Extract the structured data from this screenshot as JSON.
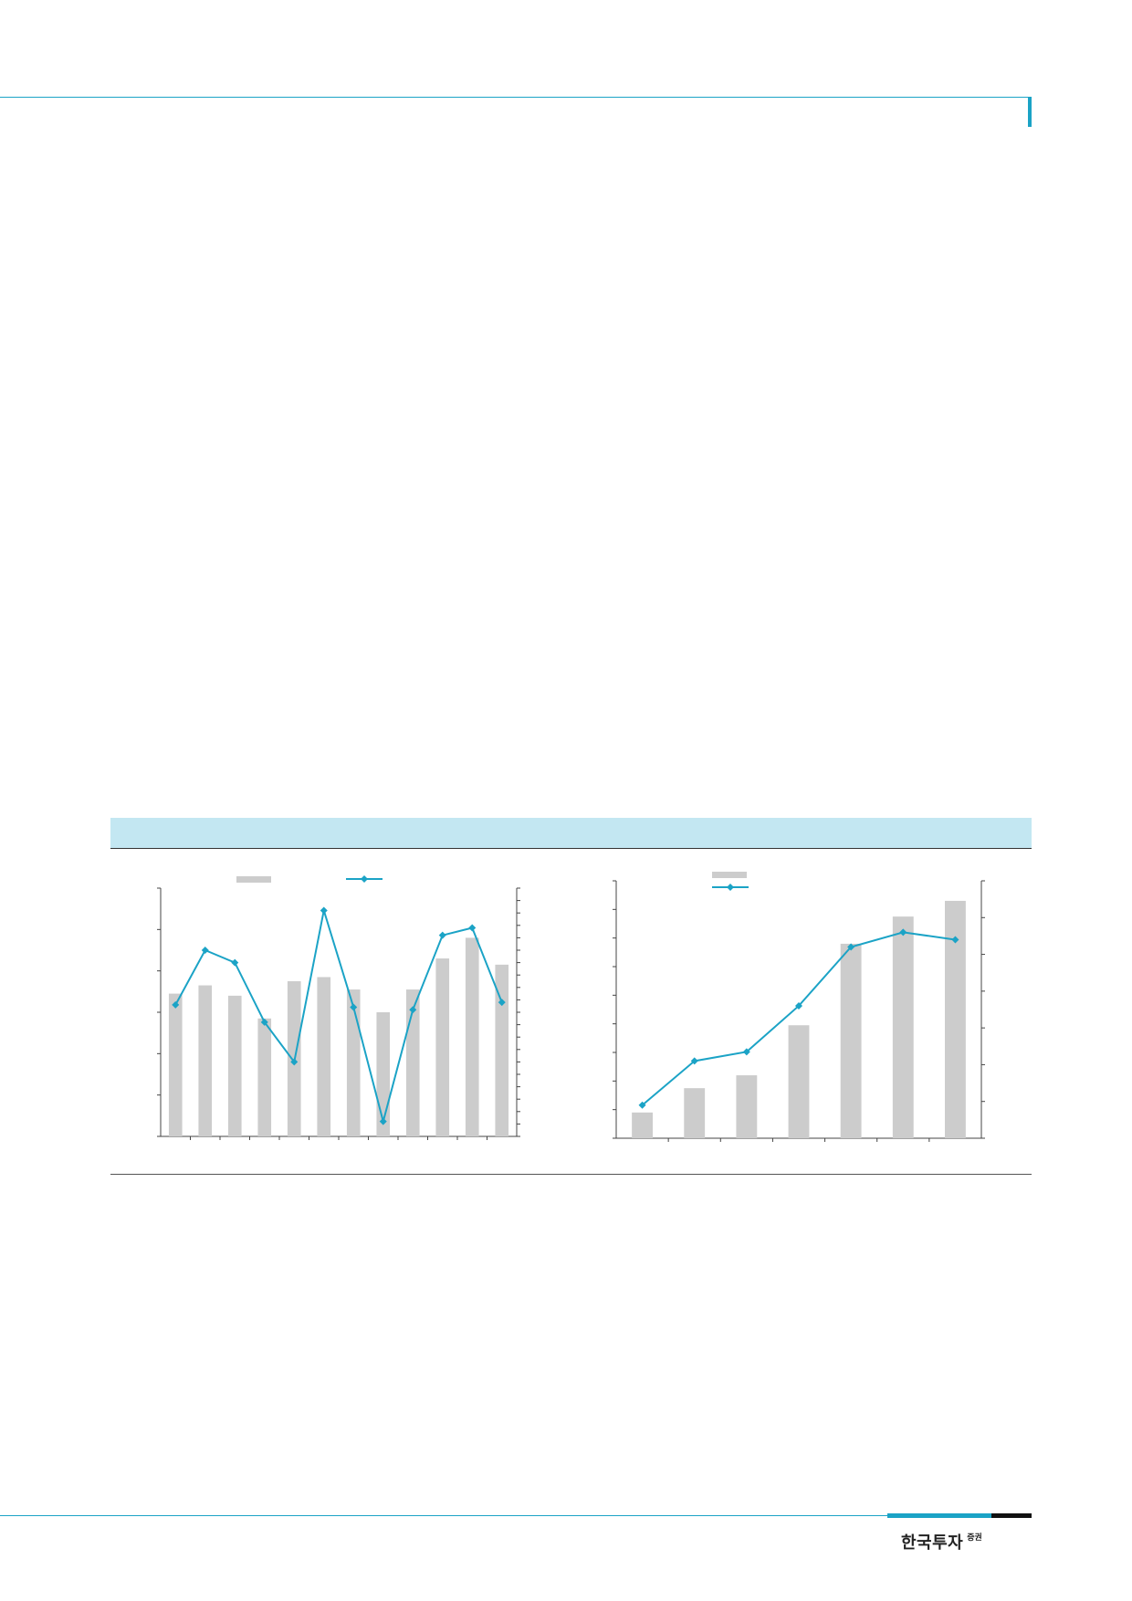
{
  "brand": {
    "main": "한국투자",
    "sub": "증권"
  },
  "colors": {
    "accent": "#1ba3c6",
    "band": "#c3e7f2",
    "bar": "#cccccc"
  },
  "chart_data": [
    {
      "type": "bar",
      "legend_position": "top",
      "grid": false,
      "ylim": [
        0,
        6
      ],
      "y2lim": [
        0,
        10
      ],
      "series": [
        {
          "kind": "bar",
          "axis": "left",
          "color": "#cccccc",
          "values": [
            3.45,
            3.65,
            3.4,
            2.85,
            3.75,
            3.85,
            3.55,
            3.0,
            3.55,
            4.3,
            4.8,
            4.15
          ]
        },
        {
          "kind": "line",
          "axis": "right",
          "color": "#1ba3c6",
          "values": [
            5.3,
            7.5,
            7.0,
            4.6,
            3.0,
            9.1,
            5.2,
            0.6,
            5.1,
            8.1,
            8.4,
            5.4
          ]
        }
      ]
    },
    {
      "type": "bar",
      "legend_position": "top-left",
      "grid": false,
      "ylim": [
        0,
        9
      ],
      "y2lim": [
        0,
        7
      ],
      "series": [
        {
          "kind": "bar",
          "axis": "left",
          "color": "#cccccc",
          "values": [
            0.9,
            1.75,
            2.2,
            3.95,
            6.8,
            7.75,
            8.3
          ]
        },
        {
          "kind": "line",
          "axis": "right",
          "color": "#1ba3c6",
          "values": [
            0.9,
            2.1,
            2.35,
            3.6,
            5.2,
            5.6,
            5.4
          ]
        }
      ]
    }
  ]
}
